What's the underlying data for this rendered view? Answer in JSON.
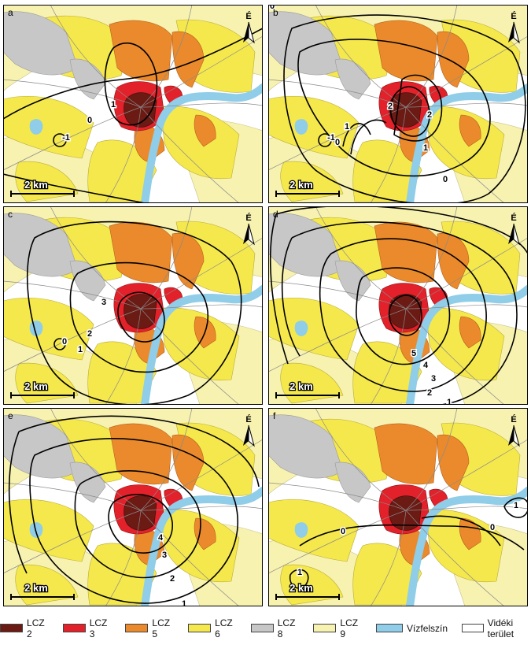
{
  "colors": {
    "lcz2": "#6b1a14",
    "lcz3": "#e2212a",
    "lcz5": "#ea8a2c",
    "lcz6": "#f5e84d",
    "lcz8": "#c7c7c7",
    "lcz9": "#f7f2b0",
    "water": "#8fcde8",
    "rural": "#ffffff"
  },
  "north_label": "É",
  "scale_label": "2 km",
  "panels": [
    {
      "letter": "a",
      "contours": [
        "1",
        "0",
        "-1"
      ]
    },
    {
      "letter": "b",
      "contours": [
        "2",
        "2",
        "1",
        "0",
        "-1",
        "0",
        "1",
        "0"
      ]
    },
    {
      "letter": "c",
      "contours": [
        "3",
        "2",
        "1",
        "0"
      ]
    },
    {
      "letter": "d",
      "contours": [
        "5",
        "4",
        "3",
        "2",
        "1"
      ]
    },
    {
      "letter": "e",
      "contours": [
        "4",
        "3",
        "2",
        "1"
      ]
    },
    {
      "letter": "f",
      "contours": [
        "0",
        "0",
        "1",
        "1"
      ]
    }
  ],
  "legend": [
    {
      "label": "LCZ 2",
      "color": "#6b1a14"
    },
    {
      "label": "LCZ 3",
      "color": "#e2212a"
    },
    {
      "label": "LCZ 5",
      "color": "#ea8a2c"
    },
    {
      "label": "LCZ 6",
      "color": "#f5e84d"
    },
    {
      "label": "LCZ 8",
      "color": "#c7c7c7"
    },
    {
      "label": "LCZ 9",
      "color": "#f7f2b0"
    },
    {
      "label": "Vízfelszín",
      "color": "#8fcde8"
    },
    {
      "label": "Vidéki terület",
      "color": "#ffffff"
    }
  ]
}
